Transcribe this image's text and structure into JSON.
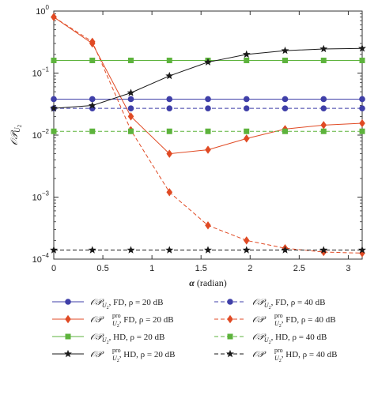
{
  "chart_data": {
    "type": "line",
    "xlabel_symbol": "α",
    "xlabel_unit": "(radian)",
    "ylabel": "𝒪𝒫",
    "ylabel_sub": "U",
    "ylabel_subsub": "2",
    "xlim": [
      0,
      3.14159
    ],
    "ylim": [
      0.0001,
      1
    ],
    "yscale": "log",
    "xticks": [
      0,
      0.5,
      1,
      1.5,
      2,
      2.5,
      3
    ],
    "xtick_labels": [
      "0",
      "0.5",
      "1",
      "1.5",
      "2",
      "2.5",
      "3"
    ],
    "yticks": [
      1,
      0.1,
      0.01,
      0.001,
      0.0001
    ],
    "ytick_labels": [
      {
        "base": "10",
        "exp": "0"
      },
      {
        "base": "10",
        "exp": "−1"
      },
      {
        "base": "10",
        "exp": "−2"
      },
      {
        "base": "10",
        "exp": "−3"
      },
      {
        "base": "10",
        "exp": "−4"
      }
    ],
    "grid": false,
    "legend_position": "below",
    "x": [
      0,
      0.3927,
      0.7854,
      1.1781,
      1.5708,
      1.9635,
      2.3562,
      2.7489,
      3.1416
    ],
    "series": [
      {
        "op": "𝒪𝒫",
        "sup": "",
        "sub": "U",
        "subsub": "2",
        "rest": ", FD, ρ = 20 dB",
        "color": "#3f3fa8",
        "dash": "solid",
        "marker": "circle",
        "values": [
          0.038,
          0.038,
          0.038,
          0.038,
          0.038,
          0.038,
          0.038,
          0.038,
          0.038
        ]
      },
      {
        "op": "𝒪𝒫",
        "sup": "",
        "sub": "U",
        "subsub": "2",
        "rest": ", FD, ρ = 40 dB",
        "color": "#3f3fa8",
        "dash": "dashed",
        "marker": "circle",
        "values": [
          0.027,
          0.027,
          0.027,
          0.027,
          0.027,
          0.027,
          0.027,
          0.027,
          0.027
        ]
      },
      {
        "op": "𝒪𝒫",
        "sup": "pro",
        "sub": "U",
        "subsub": "2",
        "rest": ", FD, ρ = 20 dB",
        "color": "#e04a24",
        "dash": "solid",
        "marker": "diamond",
        "values": [
          0.8,
          0.3,
          0.02,
          0.005,
          0.0058,
          0.0088,
          0.0125,
          0.0145,
          0.0155
        ]
      },
      {
        "op": "𝒪𝒫",
        "sup": "pro",
        "sub": "U",
        "subsub": "2",
        "rest": ", FD, ρ = 40 dB",
        "color": "#e04a24",
        "dash": "dashed",
        "marker": "diamond",
        "values": [
          0.8,
          0.32,
          0.012,
          0.0012,
          0.00035,
          0.0002,
          0.00015,
          0.00013,
          0.000125
        ]
      },
      {
        "op": "𝒪𝒫",
        "sup": "",
        "sub": "U",
        "subsub": "2",
        "rest": ", HD, ρ = 20 dB",
        "color": "#5db33c",
        "dash": "solid",
        "marker": "square",
        "values": [
          0.16,
          0.16,
          0.16,
          0.16,
          0.16,
          0.16,
          0.16,
          0.16,
          0.16
        ]
      },
      {
        "op": "𝒪𝒫",
        "sup": "",
        "sub": "U",
        "subsub": "2",
        "rest": ", HD, ρ = 40 dB",
        "color": "#5db33c",
        "dash": "dashed",
        "marker": "square",
        "values": [
          0.0115,
          0.0115,
          0.0115,
          0.0115,
          0.0115,
          0.0115,
          0.0115,
          0.0115,
          0.0115
        ]
      },
      {
        "op": "𝒪𝒫",
        "sup": "pro",
        "sub": "U",
        "subsub": "2",
        "rest": ", HD, ρ = 20 dB",
        "color": "#1a1a1a",
        "dash": "solid",
        "marker": "star",
        "values": [
          0.027,
          0.03,
          0.048,
          0.09,
          0.15,
          0.2,
          0.23,
          0.245,
          0.25
        ]
      },
      {
        "op": "𝒪𝒫",
        "sup": "pro",
        "sub": "U",
        "subsub": "2",
        "rest": ", HD, ρ = 40 dB",
        "color": "#1a1a1a",
        "dash": "dashed",
        "marker": "star",
        "values": [
          0.00014,
          0.00014,
          0.00014,
          0.00014,
          0.00014,
          0.00014,
          0.00014,
          0.00014,
          0.00014
        ]
      }
    ]
  }
}
